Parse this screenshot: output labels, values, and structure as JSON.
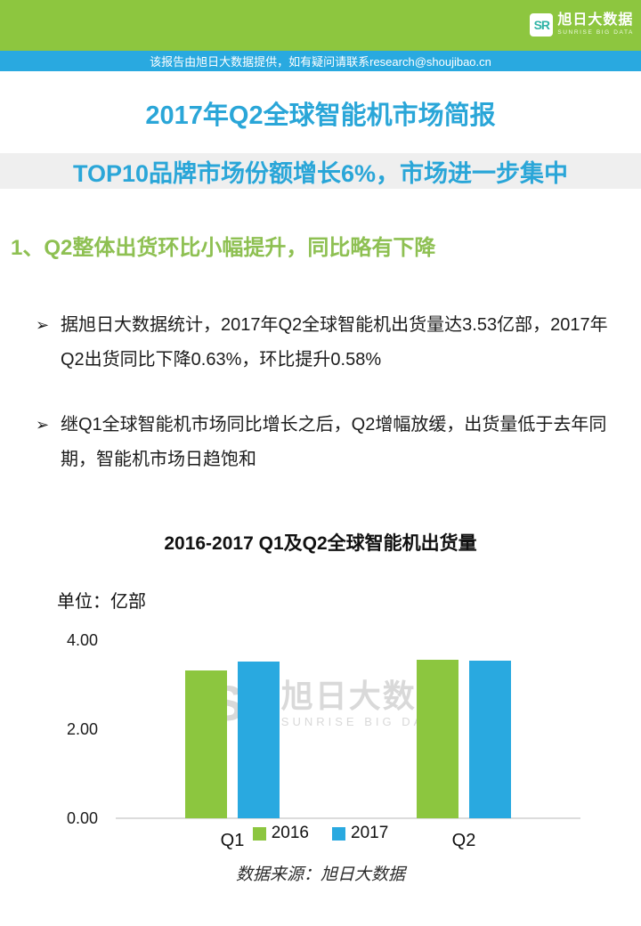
{
  "header": {
    "logo": {
      "mark": "SR",
      "name_cn": "旭日大数据",
      "name_en": "SUNRISE BIG DATA"
    }
  },
  "notice_bar": {
    "text": "该报告由旭日大数据提供，如有疑问请联系research@shoujibao.cn"
  },
  "report": {
    "title": "2017年Q2全球智能机市场简报",
    "subtitle": "TOP10品牌市场份额增长6%，市场进一步集中",
    "section_heading": "1、Q2整体出货环比小幅提升，同比略有下降",
    "bullet_icon": "➢",
    "bullets": [
      "据旭日大数据统计，2017年Q2全球智能机出货量达3.53亿部，2017年Q2出货同比下降0.63%，环比提升0.58%",
      "继Q1全球智能机市场同比增长之后，Q2增幅放缓，出货量低于去年同期，智能机市场日趋饱和"
    ],
    "source_note": "数据来源：旭日大数据"
  },
  "chart_data": {
    "type": "bar",
    "title": "2016-2017 Q1及Q2全球智能机出货量",
    "unit_label": "单位：亿部",
    "categories": [
      "Q1",
      "Q2"
    ],
    "series": [
      {
        "name": "2016",
        "color": "#8cc63f",
        "values": [
          3.32,
          3.55
        ]
      },
      {
        "name": "2017",
        "color": "#29a9e0",
        "values": [
          3.51,
          3.53
        ]
      }
    ],
    "ylim": [
      0,
      4
    ],
    "yticks": [
      "0.00",
      "2.00",
      "4.00"
    ],
    "xlabel": "",
    "ylabel": "亿部",
    "grid": false,
    "legend_position": "bottom",
    "watermark": {
      "mark": "SR",
      "text_cn": "旭日大数据",
      "text_en": "SUNRISE BIG DATA"
    }
  },
  "colors": {
    "header_green": "#8dc63f",
    "notice_blue": "#29a9e0",
    "accent_blue": "#2aa6d8",
    "heading_green": "#8ec052",
    "band_gray": "#efefef",
    "watermark_gray": "#d9d9d9"
  }
}
